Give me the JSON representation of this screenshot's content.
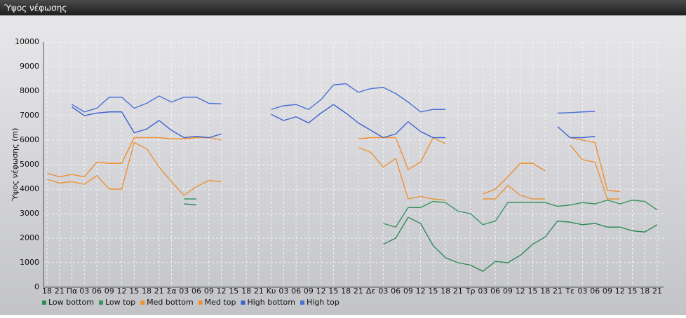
{
  "chart_data": {
    "type": "line",
    "title": "Ύψος νέφωσης",
    "y_label": "Ύψος νέφωσης (m)",
    "categories": [
      "18",
      "21",
      "Πα",
      "03",
      "06",
      "09",
      "12",
      "15",
      "18",
      "21",
      "Σα",
      "03",
      "06",
      "09",
      "12",
      "15",
      "18",
      "21",
      "Κυ",
      "03",
      "06",
      "09",
      "12",
      "15",
      "18",
      "21",
      "Δε",
      "03",
      "06",
      "09",
      "12",
      "15",
      "18",
      "21",
      "Τρ",
      "03",
      "06",
      "09",
      "12",
      "15",
      "18",
      "21",
      "Τε",
      "03",
      "06",
      "09",
      "12",
      "15",
      "18",
      "21"
    ],
    "ylim": [
      0,
      10000
    ],
    "yticks": [
      0,
      1000,
      2000,
      3000,
      4000,
      5000,
      6000,
      7000,
      8000,
      9000,
      10000
    ],
    "grid": true,
    "series": [
      {
        "name": "Low bottom",
        "color": "#2e8a57",
        "values": [
          null,
          null,
          null,
          null,
          null,
          null,
          null,
          null,
          null,
          null,
          null,
          3400,
          3350,
          null,
          null,
          null,
          null,
          null,
          null,
          null,
          null,
          null,
          null,
          null,
          null,
          null,
          null,
          1750,
          2000,
          2850,
          2600,
          1700,
          1200,
          1000,
          900,
          650,
          1050,
          1000,
          1300,
          1750,
          2050,
          2700,
          2650,
          2550,
          2600,
          2450,
          2450,
          2300,
          2250,
          2550
        ]
      },
      {
        "name": "Low top",
        "color": "#3a9460",
        "values": [
          null,
          null,
          null,
          null,
          null,
          null,
          null,
          null,
          null,
          null,
          null,
          3600,
          3600,
          null,
          null,
          null,
          null,
          null,
          null,
          null,
          null,
          null,
          null,
          null,
          null,
          null,
          null,
          2600,
          2450,
          3250,
          3250,
          3500,
          3450,
          3100,
          3000,
          2550,
          2700,
          3450,
          3450,
          3450,
          3450,
          3300,
          3350,
          3450,
          3400,
          3550,
          3400,
          3550,
          3500,
          3150
        ]
      },
      {
        "name": "Med bottom",
        "color": "#ee9238",
        "values": [
          4400,
          4250,
          4300,
          4200,
          4550,
          4000,
          4000,
          5900,
          5650,
          4900,
          4300,
          3750,
          4100,
          4350,
          4300,
          null,
          null,
          null,
          null,
          null,
          null,
          null,
          null,
          null,
          null,
          5700,
          5500,
          4900,
          5250,
          3600,
          3700,
          3600,
          3550,
          null,
          null,
          3600,
          3600,
          4150,
          3750,
          3600,
          3600,
          null,
          5800,
          5200,
          5100,
          3600,
          3600,
          null,
          null,
          null
        ]
      },
      {
        "name": "Med top",
        "color": "#f08e2e",
        "values": [
          4650,
          4500,
          4600,
          4500,
          5100,
          5050,
          5050,
          6100,
          6100,
          6100,
          6050,
          6050,
          6100,
          6100,
          6000,
          null,
          null,
          null,
          null,
          null,
          null,
          null,
          null,
          null,
          null,
          6050,
          6100,
          6100,
          6100,
          4800,
          5100,
          6100,
          5850,
          null,
          null,
          3800,
          4000,
          4500,
          5050,
          5050,
          4750,
          null,
          6100,
          6000,
          5900,
          3950,
          3900,
          null,
          null,
          null
        ]
      },
      {
        "name": "High bottom",
        "color": "#3d63cf",
        "values": [
          null,
          null,
          7350,
          7000,
          7100,
          7150,
          7150,
          6300,
          6450,
          6800,
          6400,
          6100,
          6150,
          6100,
          6250,
          null,
          null,
          null,
          7050,
          6800,
          6950,
          6700,
          7100,
          7450,
          7100,
          6700,
          6400,
          6100,
          6250,
          6750,
          6350,
          6100,
          6100,
          null,
          null,
          null,
          null,
          null,
          null,
          null,
          null,
          6550,
          6100,
          6100,
          6150,
          null,
          null,
          null,
          null,
          null
        ]
      },
      {
        "name": "High top",
        "color": "#4a6fd6",
        "values": [
          null,
          null,
          7450,
          7150,
          7300,
          7750,
          7750,
          7300,
          7500,
          7800,
          7550,
          7750,
          7750,
          7500,
          7480,
          null,
          null,
          null,
          7250,
          7400,
          7450,
          7250,
          7650,
          8250,
          8300,
          7950,
          8100,
          8150,
          7900,
          7550,
          7150,
          7250,
          7250,
          null,
          null,
          null,
          null,
          null,
          null,
          null,
          null,
          7100,
          7120,
          7150,
          7170,
          null,
          null,
          null,
          null,
          null
        ]
      }
    ]
  }
}
